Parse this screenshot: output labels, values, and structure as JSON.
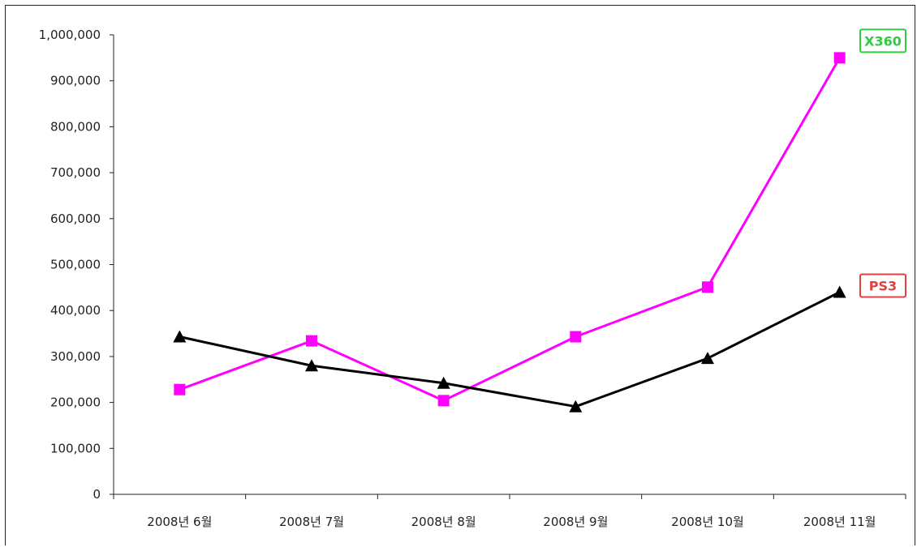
{
  "chart_data": {
    "type": "line",
    "categories": [
      "2008년 6월",
      "2008년 7월",
      "2008년 8월",
      "2008년 9월",
      "2008년 10월",
      "2008년 11월"
    ],
    "series": [
      {
        "name": "X360",
        "color": "#ff00ff",
        "marker": "square",
        "badge_color": "#2ecc40",
        "values": [
          228000,
          334000,
          204000,
          343000,
          451000,
          950000
        ]
      },
      {
        "name": "PS3",
        "color": "#000000",
        "marker": "triangle",
        "badge_color": "#e04040",
        "values": [
          343000,
          280000,
          242000,
          191000,
          296000,
          440000
        ]
      }
    ],
    "yticks": [
      "0",
      "100,000",
      "200,000",
      "300,000",
      "400,000",
      "500,000",
      "600,000",
      "700,000",
      "800,000",
      "900,000",
      "1,000,000"
    ],
    "ylim": [
      0,
      1000000
    ],
    "grid": false,
    "legend": "inline-right-end-labels"
  }
}
